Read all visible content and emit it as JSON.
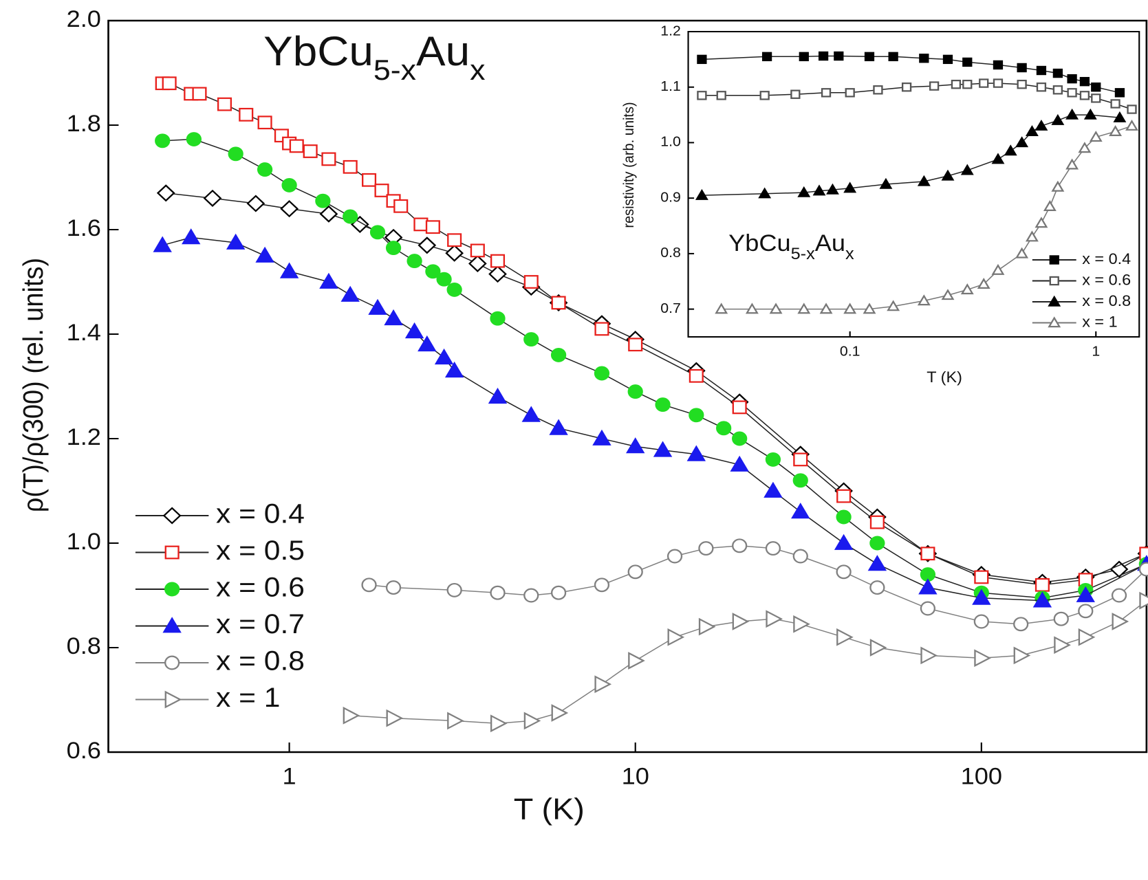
{
  "chart_data": [
    {
      "type": "line",
      "xscale": "log",
      "legend": "left",
      "title_parts": [
        "YbCu",
        "5-x",
        "Au",
        "x"
      ],
      "xlabel": "T (K)",
      "ylabel": "ρ(T)/ρ(300)  (rel. units)",
      "xlim": [
        0.3,
        300
      ],
      "ylim": [
        0.6,
        2.0
      ],
      "xticks": [
        1,
        10,
        100
      ],
      "yticks": [
        {
          "value": 0.6,
          "label": "0.6"
        },
        {
          "value": 0.8,
          "label": "0.8"
        },
        {
          "value": 1.0,
          "label": "1.0"
        },
        {
          "value": 1.2,
          "label": "1.2"
        },
        {
          "value": 1.4,
          "label": "1.4"
        },
        {
          "value": 1.6,
          "label": "1.6"
        },
        {
          "value": 1.8,
          "label": "1.8"
        },
        {
          "value": 2.0,
          "label": "2.0"
        }
      ],
      "series": [
        {
          "name": "x = 0.4",
          "color": "#000000",
          "marker": "diamond",
          "filled": false,
          "x": [
            0.44,
            0.6,
            0.8,
            1,
            1.3,
            1.6,
            2,
            2.5,
            3,
            3.5,
            4,
            5,
            6,
            8,
            10,
            15,
            20,
            30,
            40,
            50,
            70,
            100,
            150,
            200,
            250,
            300
          ],
          "values": [
            1.67,
            1.66,
            1.65,
            1.64,
            1.63,
            1.61,
            1.585,
            1.57,
            1.555,
            1.535,
            1.515,
            1.49,
            1.46,
            1.42,
            1.39,
            1.33,
            1.27,
            1.17,
            1.1,
            1.05,
            0.98,
            0.94,
            0.925,
            0.935,
            0.95,
            0.98
          ]
        },
        {
          "name": "x = 0.5",
          "color": "#e8201c",
          "marker": "square",
          "filled": false,
          "x": [
            0.43,
            0.45,
            0.52,
            0.55,
            0.65,
            0.75,
            0.85,
            0.95,
            1.0,
            1.05,
            1.15,
            1.3,
            1.5,
            1.7,
            1.85,
            2,
            2.1,
            2.4,
            2.6,
            3,
            3.5,
            4,
            5,
            6,
            8,
            10,
            15,
            20,
            30,
            40,
            50,
            70,
            100,
            150,
            200,
            300
          ],
          "values": [
            1.88,
            1.88,
            1.86,
            1.86,
            1.84,
            1.82,
            1.805,
            1.78,
            1.765,
            1.76,
            1.75,
            1.735,
            1.72,
            1.695,
            1.675,
            1.655,
            1.645,
            1.61,
            1.605,
            1.58,
            1.56,
            1.54,
            1.5,
            1.46,
            1.41,
            1.38,
            1.32,
            1.26,
            1.16,
            1.09,
            1.04,
            0.98,
            0.935,
            0.92,
            0.93,
            0.98
          ]
        },
        {
          "name": "x = 0.6",
          "color": "#22dd22",
          "marker": "circle",
          "filled": true,
          "x": [
            0.43,
            0.53,
            0.7,
            0.85,
            1,
            1.25,
            1.5,
            1.8,
            2,
            2.3,
            2.6,
            2.8,
            3,
            4,
            5,
            6,
            8,
            10,
            12,
            15,
            18,
            20,
            25,
            30,
            40,
            50,
            70,
            100,
            150,
            200,
            300
          ],
          "values": [
            1.77,
            1.773,
            1.745,
            1.715,
            1.685,
            1.655,
            1.625,
            1.595,
            1.565,
            1.54,
            1.52,
            1.505,
            1.485,
            1.43,
            1.39,
            1.36,
            1.325,
            1.29,
            1.265,
            1.245,
            1.22,
            1.2,
            1.16,
            1.12,
            1.05,
            1.0,
            0.94,
            0.905,
            0.895,
            0.91,
            0.96
          ]
        },
        {
          "name": "x = 0.7",
          "color": "#1a1aee",
          "marker": "triangle",
          "filled": true,
          "x": [
            0.43,
            0.52,
            0.7,
            0.85,
            1,
            1.3,
            1.5,
            1.8,
            2,
            2.3,
            2.5,
            2.8,
            3,
            4,
            5,
            6,
            8,
            10,
            12,
            15,
            20,
            25,
            30,
            40,
            50,
            70,
            100,
            150,
            200,
            300
          ],
          "values": [
            1.57,
            1.585,
            1.575,
            1.55,
            1.52,
            1.5,
            1.475,
            1.45,
            1.43,
            1.405,
            1.38,
            1.355,
            1.33,
            1.28,
            1.245,
            1.22,
            1.2,
            1.185,
            1.178,
            1.17,
            1.15,
            1.1,
            1.06,
            1.0,
            0.96,
            0.915,
            0.895,
            0.89,
            0.9,
            0.96
          ]
        },
        {
          "name": "x = 0.8",
          "color": "#808080",
          "marker": "circle",
          "filled": false,
          "x": [
            1.7,
            2,
            3,
            4,
            5,
            6,
            8,
            10,
            13,
            16,
            20,
            25,
            30,
            40,
            50,
            70,
            100,
            130,
            170,
            200,
            250,
            300
          ],
          "values": [
            0.92,
            0.915,
            0.91,
            0.905,
            0.9,
            0.905,
            0.92,
            0.945,
            0.975,
            0.99,
            0.995,
            0.99,
            0.975,
            0.945,
            0.915,
            0.875,
            0.85,
            0.845,
            0.855,
            0.87,
            0.9,
            0.95
          ]
        },
        {
          "name": "x = 1",
          "color": "#808080",
          "marker": "triangle-right",
          "filled": false,
          "x": [
            1.5,
            2,
            3,
            4,
            5,
            6,
            8,
            10,
            13,
            16,
            20,
            25,
            30,
            40,
            50,
            70,
            100,
            130,
            170,
            200,
            250,
            300
          ],
          "values": [
            0.67,
            0.665,
            0.66,
            0.655,
            0.66,
            0.675,
            0.73,
            0.775,
            0.82,
            0.84,
            0.85,
            0.855,
            0.845,
            0.82,
            0.8,
            0.785,
            0.78,
            0.785,
            0.805,
            0.82,
            0.85,
            0.89
          ]
        }
      ]
    },
    {
      "type": "line",
      "xscale": "log",
      "legend": "lower right",
      "title_parts": [
        "YbCu",
        "5-x",
        "Au",
        "x"
      ],
      "xlabel": "T (K)",
      "ylabel": "resistivity (arb. units)",
      "xlim": [
        0.022,
        1.5
      ],
      "ylim": [
        0.65,
        1.2
      ],
      "xticks": [
        0.1,
        1
      ],
      "yticks": [
        0.7,
        0.8,
        0.9,
        {
          "value": 1.0,
          "label": "1.0"
        },
        1.1,
        1.2
      ],
      "series": [
        {
          "name": "x = 0.4",
          "color": "#000000",
          "marker": "square",
          "filled": true,
          "x": [
            0.025,
            0.046,
            0.065,
            0.078,
            0.09,
            0.12,
            0.15,
            0.2,
            0.25,
            0.3,
            0.4,
            0.5,
            0.6,
            0.7,
            0.8,
            0.9,
            1,
            1.25
          ],
          "values": [
            1.15,
            1.155,
            1.155,
            1.156,
            1.156,
            1.155,
            1.155,
            1.152,
            1.15,
            1.145,
            1.14,
            1.135,
            1.13,
            1.125,
            1.115,
            1.11,
            1.1,
            1.09
          ]
        },
        {
          "name": "x = 0.6",
          "color": "#555555",
          "marker": "square",
          "filled": false,
          "x": [
            0.025,
            0.03,
            0.045,
            0.06,
            0.08,
            0.1,
            0.13,
            0.17,
            0.22,
            0.27,
            0.3,
            0.35,
            0.4,
            0.5,
            0.6,
            0.7,
            0.8,
            0.9,
            1,
            1.2,
            1.4
          ],
          "values": [
            1.085,
            1.085,
            1.085,
            1.087,
            1.09,
            1.09,
            1.095,
            1.1,
            1.102,
            1.105,
            1.105,
            1.107,
            1.107,
            1.105,
            1.1,
            1.095,
            1.09,
            1.085,
            1.08,
            1.07,
            1.06
          ]
        },
        {
          "name": "x = 0.8",
          "color": "#000000",
          "marker": "triangle",
          "filled": true,
          "x": [
            0.025,
            0.045,
            0.065,
            0.075,
            0.085,
            0.1,
            0.14,
            0.2,
            0.25,
            0.3,
            0.4,
            0.45,
            0.5,
            0.55,
            0.6,
            0.7,
            0.8,
            0.95,
            1.25
          ],
          "values": [
            0.905,
            0.908,
            0.91,
            0.913,
            0.915,
            0.918,
            0.925,
            0.93,
            0.94,
            0.95,
            0.97,
            0.985,
            1.0,
            1.02,
            1.03,
            1.04,
            1.05,
            1.05,
            1.045
          ]
        },
        {
          "name": "x = 1",
          "color": "#777777",
          "marker": "triangle",
          "filled": false,
          "x": [
            0.03,
            0.04,
            0.05,
            0.065,
            0.08,
            0.1,
            0.12,
            0.15,
            0.2,
            0.25,
            0.3,
            0.35,
            0.4,
            0.5,
            0.55,
            0.6,
            0.65,
            0.7,
            0.8,
            0.9,
            1,
            1.2,
            1.4
          ],
          "values": [
            0.7,
            0.7,
            0.7,
            0.7,
            0.7,
            0.7,
            0.7,
            0.705,
            0.715,
            0.725,
            0.735,
            0.745,
            0.77,
            0.8,
            0.83,
            0.855,
            0.885,
            0.92,
            0.96,
            0.99,
            1.01,
            1.02,
            1.03
          ]
        }
      ]
    }
  ]
}
